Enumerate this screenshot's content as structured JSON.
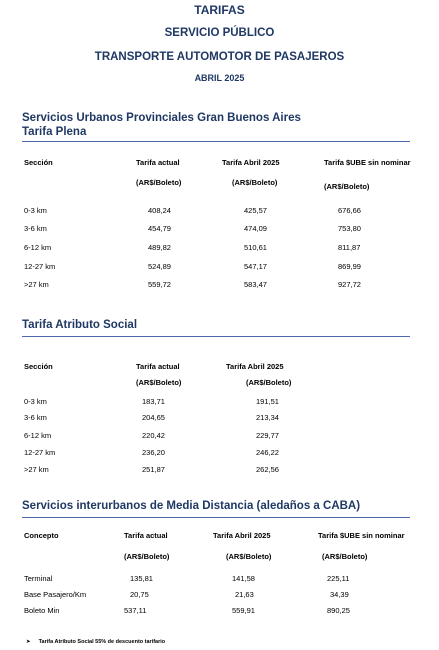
{
  "header": {
    "line1": "TARIFAS",
    "line2": "SERVICIO PÚBLICO",
    "line3": "TRANSPORTE AUTOMOTOR DE PASAJEROS",
    "date": "ABRIL 2025"
  },
  "section1": {
    "title1": "Servicios Urbanos Provinciales Gran Buenos Aires",
    "title2": "Tarifa Plena",
    "headers": {
      "col1": "Sección",
      "col2a": "Tarifa actual",
      "col2b": "(AR$/Boleto)",
      "col3a": "Tarifa Abril 2025",
      "col3b": "(AR$/Boleto)",
      "col4a": "Tarifa $UBE sin nominar",
      "col4b": "(AR$/Boleto)"
    },
    "rows": [
      {
        "section": "0-3 km",
        "actual": "408,24",
        "abril": "425,57",
        "sube": "676,66"
      },
      {
        "section": "3-6 km",
        "actual": "454,79",
        "abril": "474,09",
        "sube": "753,80"
      },
      {
        "section": "6-12 km",
        "actual": "489,82",
        "abril": "510,61",
        "sube": "811,87"
      },
      {
        "section": "12-27 km",
        "actual": "524,89",
        "abril": "547,17",
        "sube": "869,99"
      },
      {
        "section": ">27 km",
        "actual": "559,72",
        "abril": "583,47",
        "sube": "927,72"
      }
    ]
  },
  "section2": {
    "title": "Tarifa Atributo Social",
    "headers": {
      "col1": "Sección",
      "col2a": "Tarifa actual",
      "col2b": "(AR$/Boleto)",
      "col3a": "Tarifa Abril 2025",
      "col3b": "(AR$/Boleto)"
    },
    "rows": [
      {
        "section": "0-3 km",
        "actual": "183,71",
        "abril": "191,51"
      },
      {
        "section": "3-6 km",
        "actual": "204,65",
        "abril": "213,34"
      },
      {
        "section": "6-12 km",
        "actual": "220,42",
        "abril": "229,77"
      },
      {
        "section": "12-27 km",
        "actual": "236,20",
        "abril": "246,22"
      },
      {
        "section": ">27 km",
        "actual": "251,87",
        "abril": "262,56"
      }
    ]
  },
  "section3": {
    "title": "Servicios interurbanos de Media Distancia (aledaños a CABA)",
    "headers": {
      "col1": "Concepto",
      "col2a": "Tarifa actual",
      "col2b": "(AR$/Boleto)",
      "col3a": "Tarifa Abril 2025",
      "col3b": "(AR$/Boleto)",
      "col4a": "Tarifa $UBE sin nominar",
      "col4b": "(AR$/Boleto)"
    },
    "rows": [
      {
        "concept": "Terminal",
        "actual": "135,81",
        "abril": "141,58",
        "sube": "225,11"
      },
      {
        "concept": "Base Pasajero/Km",
        "actual": "20,75",
        "abril": "21,63",
        "sube": "34,39"
      },
      {
        "concept": "Boleto Min",
        "actual": "537,11",
        "abril": "559,91",
        "sube": "890,25"
      }
    ]
  },
  "note": {
    "bullet": "➤",
    "text": "Tarifa Atributo Social 55% de descuento tarifario"
  },
  "colors": {
    "heading": "#1f3864",
    "rule": "#4a69a8"
  }
}
